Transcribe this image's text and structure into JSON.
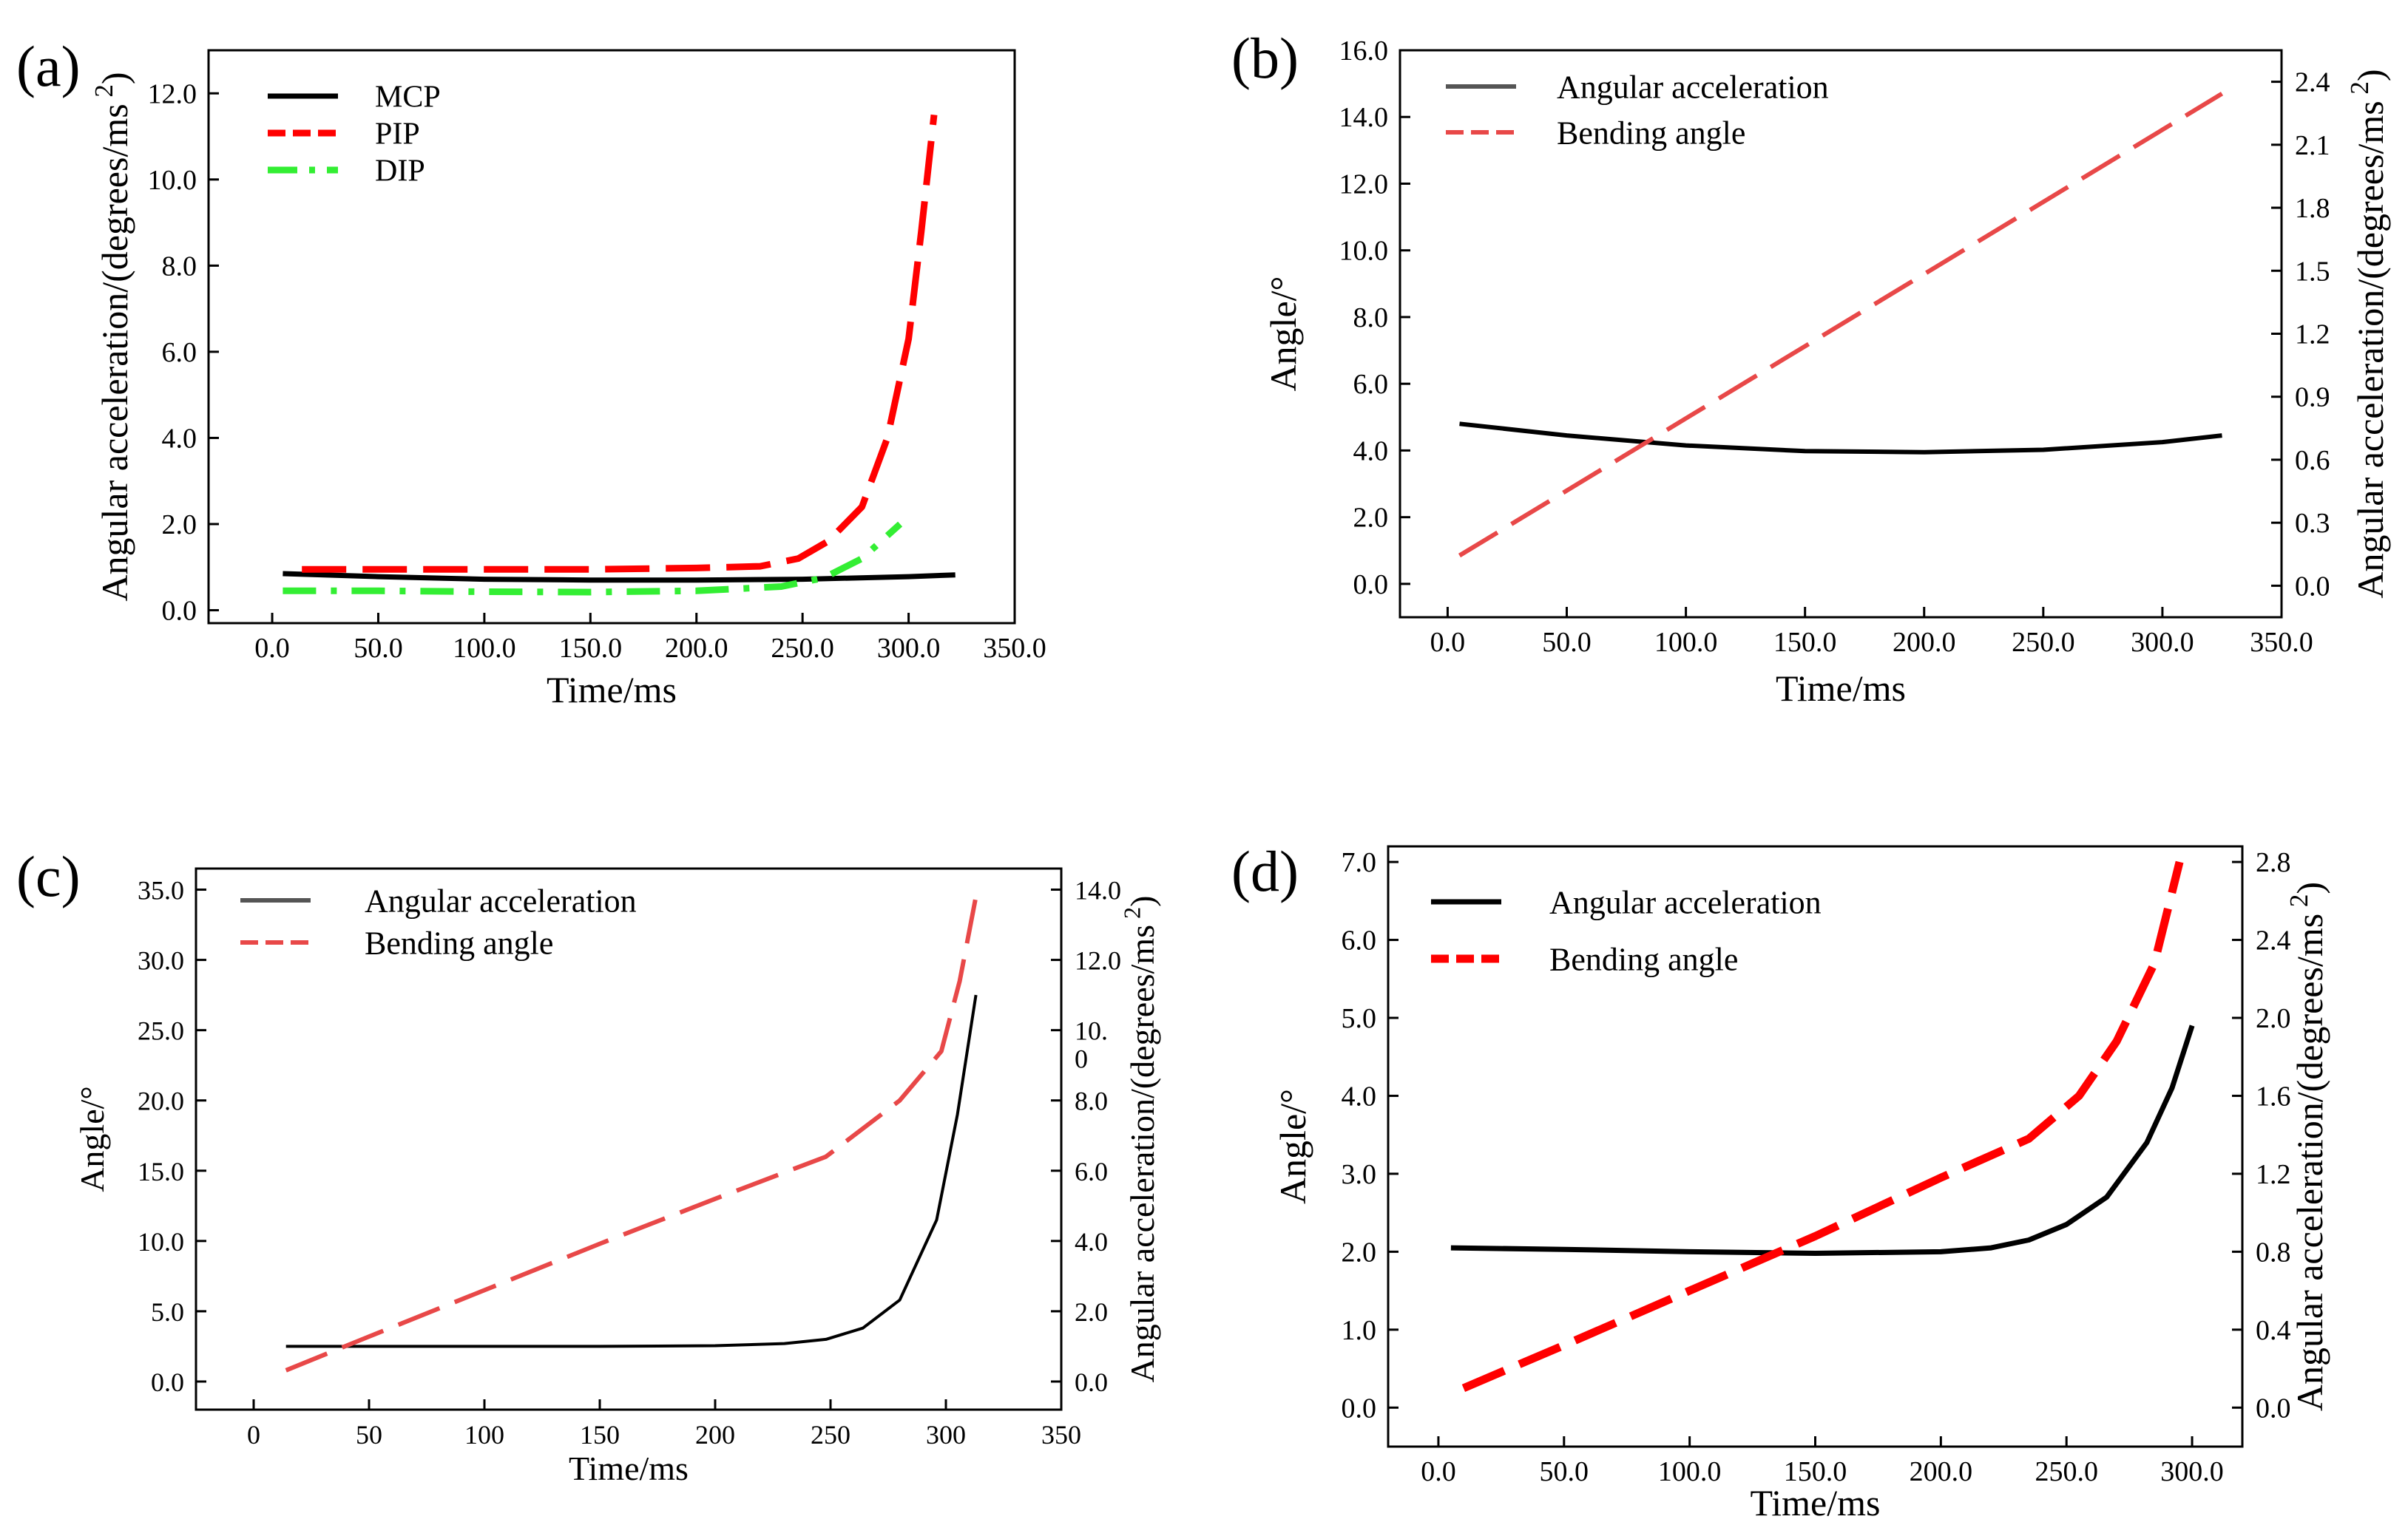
{
  "colors": {
    "black": "#000000",
    "red_bright": "#ff0000",
    "red_soft": "#e84848",
    "green": "#33ee33",
    "legend_gray": "#555555"
  },
  "chart_data": [
    {
      "id": "a",
      "panel_label": "(a)",
      "type": "line",
      "xlabel": "Time/ms",
      "ylabel": "Angular acceleration/(degrees/ms",
      "ylabel_sup": "2",
      "ylabel_close": ")",
      "xlim": [
        -30,
        350
      ],
      "ylim": [
        -0.3,
        13.0
      ],
      "xticks": [
        0,
        50,
        100,
        150,
        200,
        250,
        300,
        350
      ],
      "xtick_labels": [
        "0.0",
        "50.0",
        "100.0",
        "150.0",
        "200.0",
        "250.0",
        "300.0",
        "350.0"
      ],
      "yticks": [
        0,
        2,
        4,
        6,
        8,
        10,
        12
      ],
      "ytick_labels": [
        "0.0",
        "2.0",
        "4.0",
        "6.0",
        "8.0",
        "10.0",
        "12.0"
      ],
      "legend_position": "top-left",
      "series": [
        {
          "name": "MCP",
          "color": "#000000",
          "style": "solid",
          "width": 7,
          "x": [
            5,
            50,
            100,
            150,
            200,
            250,
            300,
            322
          ],
          "y": [
            0.85,
            0.78,
            0.72,
            0.7,
            0.7,
            0.72,
            0.78,
            0.82
          ]
        },
        {
          "name": "PIP",
          "color": "#ff0000",
          "style": "dash",
          "width": 9,
          "x": [
            14,
            50,
            100,
            150,
            200,
            230,
            248,
            262,
            278,
            290,
            300,
            306,
            312
          ],
          "y": [
            0.95,
            0.95,
            0.95,
            0.95,
            0.98,
            1.02,
            1.2,
            1.6,
            2.4,
            4.0,
            6.3,
            8.8,
            11.5
          ]
        },
        {
          "name": "DIP",
          "color": "#33ee33",
          "style": "dashdot",
          "width": 9,
          "x": [
            5,
            50,
            100,
            150,
            200,
            240,
            260,
            278,
            296
          ],
          "y": [
            0.45,
            0.45,
            0.43,
            0.42,
            0.45,
            0.55,
            0.75,
            1.2,
            2.0
          ]
        }
      ]
    },
    {
      "id": "b",
      "panel_label": "(b)",
      "type": "line",
      "xlabel": "Time/ms",
      "ylabel": "Angle/°",
      "y2label": "Angular acceleration/(degrees/ms",
      "y2label_sup": "2",
      "y2label_close": ")",
      "xlim": [
        -20,
        350
      ],
      "ylim": [
        -1.0,
        16.0
      ],
      "y2lim": [
        -0.15,
        2.55
      ],
      "xticks": [
        0,
        50,
        100,
        150,
        200,
        250,
        300,
        350
      ],
      "xtick_labels": [
        "0.0",
        "50.0",
        "100.0",
        "150.0",
        "200.0",
        "250.0",
        "300.0",
        "350.0"
      ],
      "yticks": [
        0,
        2,
        4,
        6,
        8,
        10,
        12,
        14,
        16
      ],
      "ytick_labels": [
        "0.0",
        "2.0",
        "4.0",
        "6.0",
        "8.0",
        "10.0",
        "12.0",
        "14.0",
        "16.0"
      ],
      "y2ticks": [
        0,
        0.3,
        0.6,
        0.9,
        1.2,
        1.5,
        1.8,
        2.1,
        2.4
      ],
      "y2tick_labels": [
        "0.0",
        "0.3",
        "0.6",
        "0.9",
        "1.2",
        "1.5",
        "1.8",
        "2.1",
        "2.4"
      ],
      "legend_position": "top-left",
      "series": [
        {
          "name": "Angular acceleration",
          "legend_color": "#555555",
          "color": "#000000",
          "style": "solid",
          "width": 6,
          "axis": "y",
          "x": [
            5,
            50,
            100,
            150,
            200,
            250,
            300,
            325
          ],
          "y": [
            4.8,
            4.45,
            4.15,
            3.98,
            3.95,
            4.02,
            4.25,
            4.45
          ]
        },
        {
          "name": "Bending angle",
          "color": "#e84848",
          "style": "dash",
          "width": 6,
          "axis": "y",
          "x": [
            5,
            325
          ],
          "y": [
            0.85,
            14.7
          ]
        }
      ]
    },
    {
      "id": "c",
      "panel_label": "(c)",
      "type": "line",
      "xlabel": "Time/ms",
      "ylabel": "Angle/°",
      "y2label": "Angular acceleration/(degrees/ms",
      "y2label_sup": "2",
      "y2label_close": ")",
      "xlim": [
        -25,
        350
      ],
      "ylim": [
        -2.0,
        36.5
      ],
      "y2lim": [
        -0.8,
        14.6
      ],
      "xticks": [
        0,
        50,
        100,
        150,
        200,
        250,
        300,
        350
      ],
      "xtick_labels": [
        "0",
        "50",
        "100",
        "150",
        "200",
        "250",
        "300",
        "350"
      ],
      "yticks": [
        0,
        5,
        10,
        15,
        20,
        25,
        30,
        35
      ],
      "ytick_labels": [
        "0.0",
        "5.0",
        "10.0",
        "15.0",
        "20.0",
        "25.0",
        "30.0",
        "35.0"
      ],
      "y2ticks": [
        0,
        2,
        4,
        6,
        8,
        10,
        12,
        14
      ],
      "y2tick_labels": [
        "0.0",
        "2.0",
        "4.0",
        "6.0",
        "8.0",
        "10.\n0",
        "12.0",
        "14.0"
      ],
      "legend_position": "top-left",
      "series": [
        {
          "name": "Angular acceleration",
          "legend_color": "#555555",
          "color": "#000000",
          "style": "solid",
          "width": 4,
          "axis": "y",
          "x": [
            14,
            50,
            100,
            150,
            200,
            230,
            248,
            264,
            280,
            296,
            305,
            313
          ],
          "y": [
            2.5,
            2.5,
            2.5,
            2.5,
            2.55,
            2.7,
            3.0,
            3.8,
            5.8,
            11.5,
            19.0,
            27.5
          ]
        },
        {
          "name": "Bending angle",
          "color": "#e84848",
          "style": "dash",
          "width": 6,
          "axis": "y",
          "x": [
            14,
            50,
            100,
            150,
            200,
            248,
            280,
            298,
            306,
            313
          ],
          "y": [
            0.8,
            3.2,
            6.5,
            9.8,
            13.0,
            16.0,
            20.0,
            23.5,
            28.5,
            34.5
          ]
        }
      ]
    },
    {
      "id": "d",
      "panel_label": "(d)",
      "type": "line",
      "xlabel": "Time/ms",
      "ylabel": "Angle/°",
      "y2label": "Angular acceleration/(degrees/ms",
      "y2label_sup": "2",
      "y2label_close": ")",
      "xlim": [
        -20,
        320
      ],
      "ylim": [
        -0.5,
        7.2
      ],
      "y2lim": [
        -0.2,
        2.88
      ],
      "xticks": [
        0,
        50,
        100,
        150,
        200,
        250,
        300
      ],
      "xtick_labels": [
        "0.0",
        "50.0",
        "100.0",
        "150.0",
        "200.0",
        "250.0",
        "300.0"
      ],
      "yticks": [
        0,
        1,
        2,
        3,
        4,
        5,
        6,
        7
      ],
      "ytick_labels": [
        "0.0",
        "1.0",
        "2.0",
        "3.0",
        "4.0",
        "5.0",
        "6.0",
        "7.0"
      ],
      "y2ticks": [
        0,
        0.4,
        0.8,
        1.2,
        1.6,
        2.0,
        2.4,
        2.8
      ],
      "y2tick_labels": [
        "0.0",
        "0.4",
        "0.8",
        "1.2",
        "1.6",
        "2.0",
        "2.4",
        "2.8"
      ],
      "legend_position": "top-left",
      "series": [
        {
          "name": "Angular acceleration",
          "color": "#000000",
          "style": "solid",
          "width": 7,
          "axis": "y",
          "x": [
            5,
            50,
            100,
            150,
            200,
            220,
            235,
            250,
            266,
            282,
            292,
            300
          ],
          "y": [
            2.05,
            2.03,
            2.0,
            1.98,
            2.0,
            2.05,
            2.15,
            2.35,
            2.7,
            3.4,
            4.1,
            4.9
          ]
        },
        {
          "name": "Bending angle",
          "color": "#ff0000",
          "style": "dash",
          "width": 11,
          "axis": "y",
          "x": [
            10,
            50,
            100,
            150,
            200,
            235,
            255,
            270,
            285,
            295
          ],
          "y": [
            0.25,
            0.8,
            1.5,
            2.2,
            2.95,
            3.45,
            4.0,
            4.7,
            5.7,
            7.0
          ]
        }
      ]
    }
  ]
}
